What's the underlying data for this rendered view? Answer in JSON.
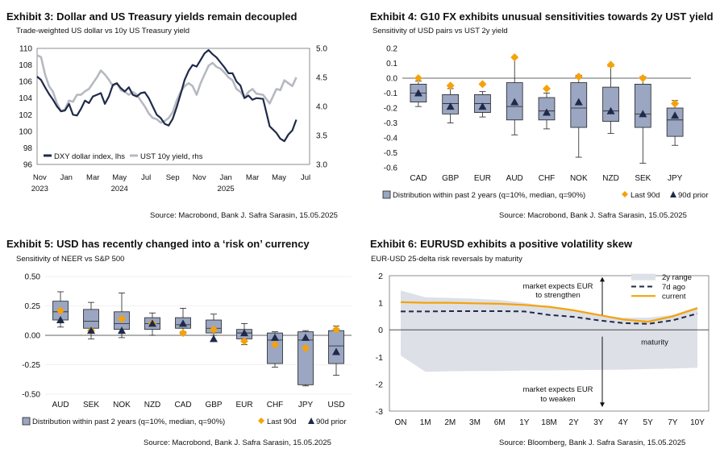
{
  "colors": {
    "navy": "#1f2a4a",
    "grey": "#b7b9c2",
    "box": "#9aa6c2",
    "orange": "#f5a20a",
    "band": "#dde0e6"
  },
  "panels": [
    {
      "title": "Exhibit 3: Dollar and US Treasury yields remain decoupled",
      "subtitle": "Trade-weighted US dollar vs 10y US Treasury yield",
      "source": "Source: Macrobond, Bank J. Safra Sarasin, 15.05.2025"
    },
    {
      "title": "Exhibit 4: G10 FX exhibits unusual sensitivities towards 2y UST yield",
      "subtitle": "Sensitivity of USD pairs vs UST 2y yield",
      "source": "Source: Macrobond, Bank J. Safra Sarasin, 15.05.2025"
    },
    {
      "title": "Exhibit 5: USD has recently changed into a ‘risk on’ currency",
      "subtitle": "Sensitivity of NEER vs S&P 500",
      "source": "Source: Macrobond, Bank J. Safra Sarasin, 15.05.2025"
    },
    {
      "title": "Exhibit 6: EURUSD exhibits a positive volatility skew",
      "subtitle": "EUR-USD 25-delta risk reversals by maturity",
      "source": "Source: Bloomberg, Bank J. Safra Sarasin, 15.05.2025"
    }
  ],
  "chart_data": [
    {
      "type": "line",
      "x_ticks": [
        "Nov",
        "Jan",
        "Mar",
        "May",
        "Jul",
        "Sep",
        "Nov",
        "Jan",
        "Mar",
        "May",
        "Jul"
      ],
      "year_labels": [
        "2023",
        "2024",
        "2025"
      ],
      "left_ticks": [
        "96",
        "98",
        "100",
        "102",
        "104",
        "106",
        "108",
        "110"
      ],
      "right_ticks": [
        "3.0",
        "3.5",
        "4.0",
        "4.5",
        "5.0"
      ],
      "ylim_left": [
        96,
        110
      ],
      "ylim_right": [
        3.0,
        5.0
      ],
      "series": [
        {
          "name": "DXY dollar index, lhs",
          "axis": "left",
          "color": "navy",
          "x": [
            0,
            0.3,
            0.6,
            0.9,
            1.2,
            1.5,
            1.8,
            2.1,
            2.4,
            2.7,
            3.0,
            3.3,
            3.6,
            3.9,
            4.2,
            4.5,
            4.8,
            5.1,
            5.4,
            5.7,
            6.0,
            6.3,
            6.6,
            6.9,
            7.2,
            7.5,
            7.8,
            8.1,
            8.4,
            8.7,
            9.0,
            9.3,
            9.6,
            9.9,
            10.2,
            10.5,
            10.8,
            11.1,
            11.4,
            11.7,
            12.0,
            12.3,
            12.6,
            12.9,
            13.2,
            13.5,
            13.8,
            14.1,
            14.4,
            14.7,
            15.0,
            15.3,
            15.6,
            15.9,
            16.2,
            16.5,
            17.0,
            17.5,
            18.0,
            18.3,
            18.6,
            18.9,
            19.2,
            19.5
          ],
          "y": [
            106.6,
            106.2,
            105.3,
            104.5,
            103.8,
            103.0,
            102.4,
            102.5,
            103.3,
            102.0,
            101.9,
            102.7,
            103.7,
            103.4,
            104.2,
            104.4,
            104.6,
            103.3,
            104.2,
            105.6,
            105.8,
            105.2,
            104.8,
            105.3,
            104.4,
            104.2,
            104.6,
            104.7,
            104.0,
            103.0,
            102.0,
            101.6,
            100.9,
            100.7,
            101.5,
            102.9,
            104.5,
            106.2,
            107.3,
            108.0,
            107.8,
            108.6,
            109.4,
            109.8,
            109.3,
            108.9,
            108.3,
            107.7,
            107.0,
            107.0,
            106.0,
            105.5,
            104.0,
            104.3,
            103.8,
            104.0,
            103.9,
            100.6,
            99.8,
            99.1,
            98.8,
            99.6,
            100.1,
            101.4
          ]
        },
        {
          "name": "UST 10y yield, rhs",
          "axis": "right",
          "color": "grey",
          "x": [
            0,
            0.3,
            0.6,
            0.9,
            1.2,
            1.5,
            1.8,
            2.1,
            2.4,
            2.7,
            3.0,
            3.3,
            3.6,
            3.9,
            4.2,
            4.5,
            4.8,
            5.1,
            5.4,
            5.7,
            6.0,
            6.3,
            6.6,
            6.9,
            7.2,
            7.5,
            7.8,
            8.1,
            8.4,
            8.7,
            9.0,
            9.3,
            9.6,
            9.9,
            10.2,
            10.5,
            10.8,
            11.1,
            11.4,
            11.7,
            12.0,
            12.3,
            12.6,
            12.9,
            13.2,
            13.5,
            13.8,
            14.1,
            14.4,
            14.7,
            15.0,
            15.3,
            15.6,
            15.9,
            16.2,
            16.5,
            17.0,
            17.5,
            18.0,
            18.3,
            18.6,
            18.9,
            19.2,
            19.5
          ],
          "y": [
            4.88,
            4.85,
            4.55,
            4.35,
            4.25,
            4.05,
            3.92,
            3.95,
            4.1,
            4.08,
            4.2,
            4.2,
            4.26,
            4.3,
            4.4,
            4.5,
            4.62,
            4.55,
            4.46,
            4.35,
            4.4,
            4.28,
            4.25,
            4.2,
            4.25,
            4.2,
            4.1,
            4.0,
            3.88,
            3.8,
            3.78,
            3.72,
            3.75,
            3.8,
            3.9,
            4.1,
            4.25,
            4.35,
            4.4,
            4.35,
            4.2,
            4.4,
            4.55,
            4.7,
            4.75,
            4.68,
            4.65,
            4.58,
            4.5,
            4.45,
            4.3,
            4.25,
            4.15,
            4.25,
            4.3,
            4.22,
            4.2,
            4.05,
            4.3,
            4.28,
            4.45,
            4.4,
            4.35,
            4.5
          ]
        }
      ],
      "legend": [
        "DXY dollar index, lhs",
        "UST 10y yield, rhs"
      ]
    },
    {
      "type": "box",
      "categories": [
        "CAD",
        "GBP",
        "EUR",
        "AUD",
        "CHF",
        "NOK",
        "NZD",
        "SEK",
        "JPY"
      ],
      "ylim": [
        -0.6,
        0.2
      ],
      "y_ticks": [
        "0.2",
        "0.1",
        "0.0",
        "-0.1",
        "-0.2",
        "-0.3",
        "-0.4",
        "-0.5",
        "-0.6"
      ],
      "boxes": [
        {
          "min": -0.19,
          "q1": -0.16,
          "median": -0.1,
          "q3": -0.04,
          "max": -0.02,
          "last90d": 0.0,
          "prior90d": -0.1
        },
        {
          "min": -0.3,
          "q1": -0.24,
          "median": -0.17,
          "q3": -0.11,
          "max": -0.07,
          "last90d": -0.05,
          "prior90d": -0.19
        },
        {
          "min": -0.26,
          "q1": -0.23,
          "median": -0.17,
          "q3": -0.11,
          "max": -0.09,
          "last90d": -0.04,
          "prior90d": -0.19
        },
        {
          "min": -0.38,
          "q1": -0.28,
          "median": -0.19,
          "q3": -0.03,
          "max": 0.14,
          "last90d": 0.14,
          "prior90d": -0.16
        },
        {
          "min": -0.34,
          "q1": -0.28,
          "median": -0.22,
          "q3": -0.13,
          "max": -0.1,
          "last90d": -0.07,
          "prior90d": -0.23
        },
        {
          "min": -0.53,
          "q1": -0.33,
          "median": -0.2,
          "q3": -0.03,
          "max": 0.02,
          "last90d": 0.01,
          "prior90d": -0.16
        },
        {
          "min": -0.37,
          "q1": -0.29,
          "median": -0.22,
          "q3": -0.06,
          "max": 0.08,
          "last90d": 0.09,
          "prior90d": -0.22
        },
        {
          "min": -0.57,
          "q1": -0.33,
          "median": -0.24,
          "q3": -0.04,
          "max": 0.01,
          "last90d": 0.0,
          "prior90d": -0.24
        },
        {
          "min": -0.45,
          "q1": -0.39,
          "median": -0.28,
          "q3": -0.2,
          "max": -0.15,
          "last90d": -0.17,
          "prior90d": -0.25
        }
      ],
      "legend": [
        "Distribution within past 2 years (q=10%, median, q=90%)",
        "Last 90d",
        "90d prior"
      ]
    },
    {
      "type": "box",
      "categories": [
        "AUD",
        "SEK",
        "NOK",
        "NZD",
        "CAD",
        "GBP",
        "EUR",
        "CHF",
        "JPY",
        "USD"
      ],
      "ylim": [
        -0.5,
        0.5
      ],
      "y_ticks": [
        "0.50",
        "0.25",
        "0.00",
        "-0.25",
        "-0.50"
      ],
      "boxes": [
        {
          "min": 0.07,
          "q1": 0.13,
          "median": 0.2,
          "q3": 0.29,
          "max": 0.37,
          "last90d": 0.21,
          "prior90d": 0.13
        },
        {
          "min": -0.03,
          "q1": 0.06,
          "median": 0.12,
          "q3": 0.22,
          "max": 0.28,
          "last90d": 0.04,
          "prior90d": 0.04
        },
        {
          "min": -0.02,
          "q1": 0.05,
          "median": 0.1,
          "q3": 0.2,
          "max": 0.36,
          "last90d": 0.14,
          "prior90d": 0.04
        },
        {
          "min": 0.0,
          "q1": 0.05,
          "median": 0.1,
          "q3": 0.15,
          "max": 0.19,
          "last90d": 0.1,
          "prior90d": 0.1
        },
        {
          "min": 0.03,
          "q1": 0.06,
          "median": 0.09,
          "q3": 0.15,
          "max": 0.23,
          "last90d": 0.02,
          "prior90d": 0.1
        },
        {
          "min": 0.0,
          "q1": 0.02,
          "median": 0.06,
          "q3": 0.13,
          "max": 0.18,
          "last90d": 0.05,
          "prior90d": -0.03
        },
        {
          "min": -0.08,
          "q1": -0.03,
          "median": 0.02,
          "q3": 0.05,
          "max": 0.1,
          "last90d": -0.05,
          "prior90d": 0.02
        },
        {
          "min": -0.27,
          "q1": -0.24,
          "median": -0.04,
          "q3": 0.02,
          "max": 0.03,
          "last90d": -0.08,
          "prior90d": -0.02
        },
        {
          "min": -0.43,
          "q1": -0.42,
          "median": -0.04,
          "q3": 0.03,
          "max": 0.04,
          "last90d": -0.11,
          "prior90d": -0.02
        },
        {
          "min": -0.34,
          "q1": -0.24,
          "median": -0.09,
          "q3": 0.04,
          "max": 0.08,
          "last90d": 0.05,
          "prior90d": -0.14
        }
      ],
      "legend": [
        "Distribution within past 2 years (q=10%, median, q=90%)",
        "Last 90d",
        "90d prior"
      ]
    },
    {
      "type": "area",
      "categories": [
        "ON",
        "1M",
        "2M",
        "3M",
        "6M",
        "1Y",
        "18M",
        "2Y",
        "3Y",
        "4Y",
        "5Y",
        "7Y",
        "10Y"
      ],
      "ylim": [
        -3,
        2
      ],
      "y_ticks": [
        "2",
        "1",
        "0",
        "-1",
        "-2",
        "-3"
      ],
      "series": [
        {
          "name": "2y range",
          "type": "band",
          "upper": [
            1.45,
            1.2,
            1.18,
            1.15,
            1.1,
            1.0,
            0.85,
            0.72,
            0.55,
            0.45,
            0.45,
            0.55,
            0.85
          ],
          "lower": [
            -0.95,
            -1.55,
            -1.53,
            -1.52,
            -1.52,
            -1.5,
            -1.5,
            -1.49,
            -1.48,
            -1.47,
            -1.45,
            -1.43,
            -1.4
          ]
        },
        {
          "name": "7d ago",
          "type": "dashed",
          "values": [
            0.68,
            0.68,
            0.69,
            0.69,
            0.69,
            0.68,
            0.55,
            0.48,
            0.35,
            0.25,
            0.22,
            0.35,
            0.6
          ]
        },
        {
          "name": "current",
          "type": "line",
          "values": [
            1.02,
            1.0,
            1.0,
            0.98,
            0.96,
            0.92,
            0.85,
            0.72,
            0.55,
            0.38,
            0.3,
            0.5,
            0.8
          ]
        }
      ],
      "annotations": [
        "market expects EUR to strengthen",
        "market expects EUR to weaken",
        "maturity"
      ],
      "legend": [
        "2y range",
        "7d ago",
        "current"
      ]
    }
  ]
}
